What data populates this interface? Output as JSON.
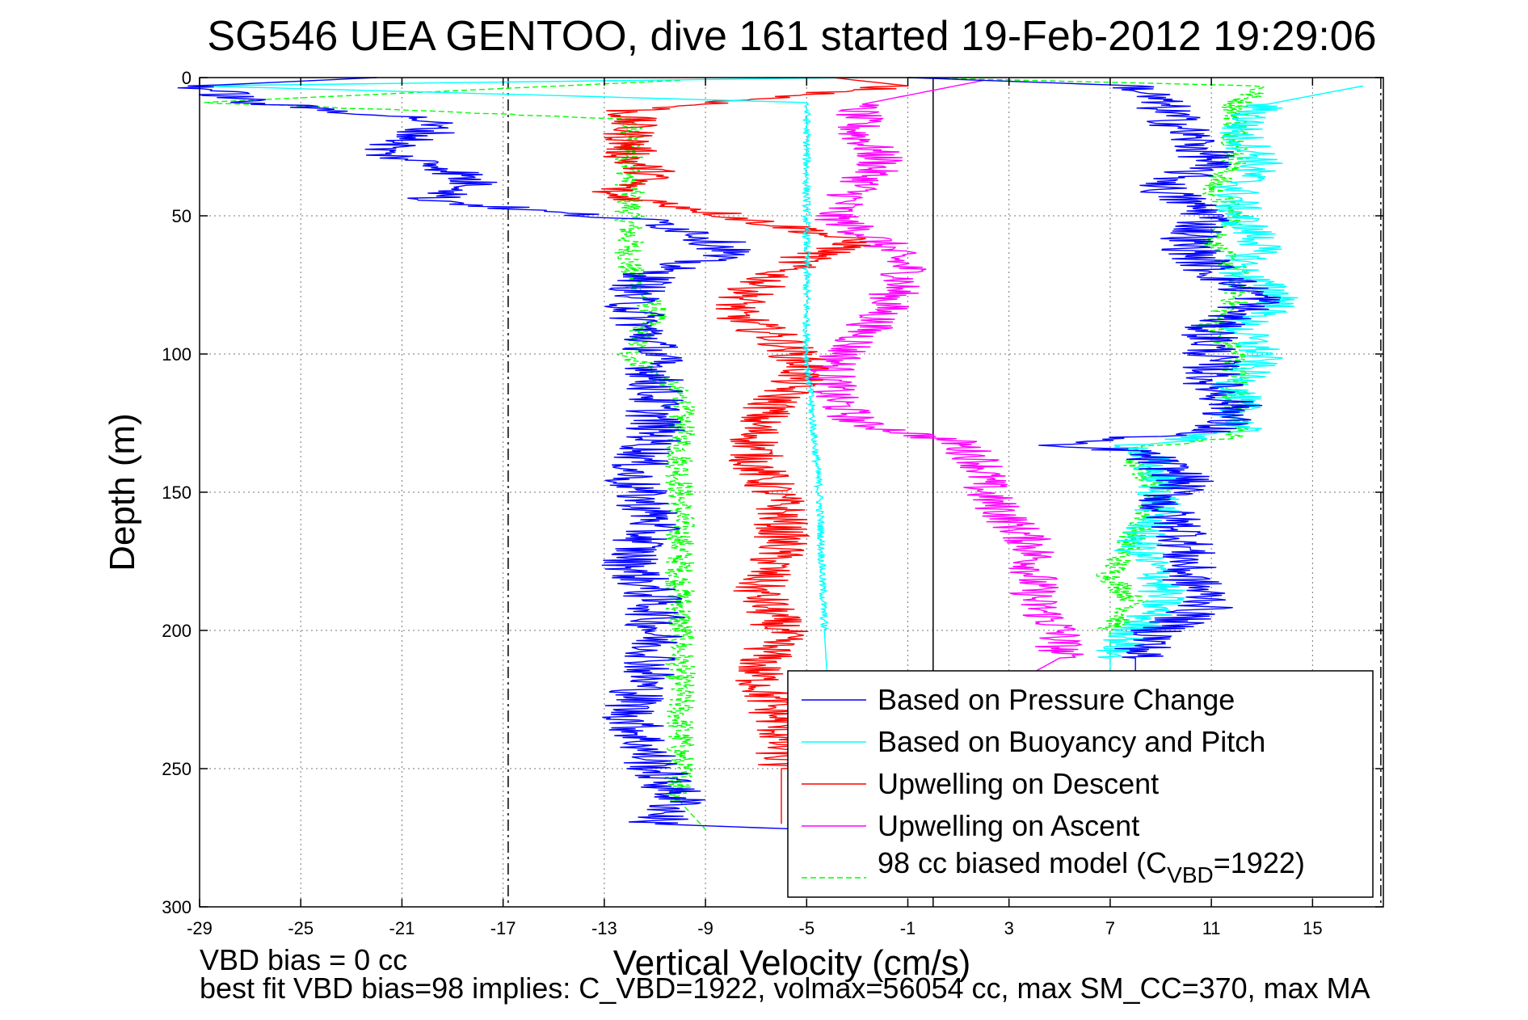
{
  "chart_data": {
    "type": "line",
    "title": "SG546 UEA GENTOO, dive 161 started 19-Feb-2012 19:29:06",
    "xlabel": "Vertical Velocity (cm/s)",
    "ylabel": "Depth (m)",
    "xlim": [
      -29,
      17.8
    ],
    "ylim": [
      0,
      300
    ],
    "y_reversed": true,
    "grid": true,
    "x_ticks": [
      -29,
      -25,
      -21,
      -17,
      -13,
      -9,
      -5,
      -1,
      3,
      7,
      11,
      15
    ],
    "x_tick_labels": [
      "-29",
      "-25",
      "-21",
      "-17",
      "-13",
      "-9",
      "-5",
      "-1",
      "3",
      "7",
      "11",
      "15"
    ],
    "y_ticks": [
      0,
      50,
      100,
      150,
      200,
      250,
      300
    ],
    "y_tick_labels": [
      "0",
      "50",
      "100",
      "150",
      "200",
      "250",
      "300"
    ],
    "legend_position": "bottom-right",
    "reference_lines": [
      {
        "x": 0,
        "style": "solid"
      },
      {
        "x": -16.8,
        "style": "dash-dot"
      },
      {
        "x": 17.7,
        "style": "dash-dot"
      }
    ],
    "series": [
      {
        "name": "Based on Pressure Change",
        "color": "#0000ff",
        "style": "solid",
        "descent": [
          [
            -22,
            0
          ],
          [
            -29,
            3
          ],
          [
            -27,
            9
          ],
          [
            -20,
            15
          ],
          [
            -20,
            20
          ],
          [
            -22,
            27
          ],
          [
            -19,
            33
          ],
          [
            -18,
            40
          ],
          [
            -20,
            44
          ],
          [
            -16,
            48
          ],
          [
            -11,
            52
          ],
          [
            -9,
            57
          ],
          [
            -8,
            63
          ],
          [
            -11,
            70
          ],
          [
            -12,
            80
          ],
          [
            -11,
            100
          ],
          [
            -11,
            115
          ],
          [
            -11,
            130
          ],
          [
            -12,
            145
          ],
          [
            -11,
            160
          ],
          [
            -12,
            175
          ],
          [
            -11,
            190
          ],
          [
            -11,
            210
          ],
          [
            -12,
            230
          ],
          [
            -11,
            250
          ],
          [
            -10,
            262
          ],
          [
            -11,
            270
          ],
          [
            -5,
            272
          ]
        ],
        "ascent": [
          [
            -1,
            0
          ],
          [
            8,
            3
          ],
          [
            9,
            10
          ],
          [
            10,
            20
          ],
          [
            11,
            30
          ],
          [
            9,
            40
          ],
          [
            11,
            50
          ],
          [
            10,
            60
          ],
          [
            11,
            70
          ],
          [
            13,
            80
          ],
          [
            11,
            90
          ],
          [
            11,
            100
          ],
          [
            11,
            110
          ],
          [
            12,
            120
          ],
          [
            11,
            128
          ],
          [
            4,
            133
          ],
          [
            8,
            135
          ],
          [
            10,
            145
          ],
          [
            9,
            155
          ],
          [
            10,
            165
          ],
          [
            10,
            180
          ],
          [
            11,
            190
          ],
          [
            9,
            200
          ],
          [
            8,
            210
          ],
          [
            8,
            215
          ]
        ],
        "amplitude": [
          1.2,
          1.2
        ]
      },
      {
        "name": "Based on Buoyancy and Pitch",
        "color": "#00ffff",
        "style": "solid",
        "descent": [
          [
            -3,
            0
          ],
          [
            -29,
            3
          ],
          [
            -5,
            9
          ],
          [
            -5,
            20
          ],
          [
            -5,
            40
          ],
          [
            -5,
            60
          ],
          [
            -5,
            80
          ],
          [
            -5,
            100
          ],
          [
            -4.8,
            120
          ],
          [
            -4.5,
            150
          ],
          [
            -4.3,
            200
          ],
          [
            -4.2,
            215
          ]
        ],
        "ascent": [
          [
            17,
            3
          ],
          [
            13,
            10
          ],
          [
            12,
            20
          ],
          [
            13,
            30
          ],
          [
            12,
            40
          ],
          [
            12,
            50
          ],
          [
            13,
            60
          ],
          [
            12,
            70
          ],
          [
            14,
            80
          ],
          [
            12,
            90
          ],
          [
            13,
            100
          ],
          [
            12,
            110
          ],
          [
            12,
            120
          ],
          [
            12,
            128
          ],
          [
            8,
            133
          ],
          [
            9,
            145
          ],
          [
            9,
            155
          ],
          [
            8,
            170
          ],
          [
            9,
            180
          ],
          [
            9,
            190
          ],
          [
            8,
            200
          ],
          [
            7,
            210
          ],
          [
            7,
            215
          ]
        ],
        "amplitude": [
          0.15,
          1.0
        ]
      },
      {
        "name": "Upwelling on Descent",
        "color": "#ff0000",
        "style": "solid",
        "descent": [
          [
            -4,
            0
          ],
          [
            -1,
            3
          ],
          [
            -12,
            12
          ],
          [
            -12,
            20
          ],
          [
            -12,
            30
          ],
          [
            -11,
            35
          ],
          [
            -13,
            42
          ],
          [
            -9,
            48
          ],
          [
            -7,
            52
          ],
          [
            -5,
            55
          ],
          [
            -3,
            60
          ],
          [
            -5,
            65
          ],
          [
            -6,
            70
          ],
          [
            -7,
            76
          ],
          [
            -8,
            85
          ],
          [
            -6,
            95
          ],
          [
            -5,
            105
          ],
          [
            -6,
            115
          ],
          [
            -7,
            125
          ],
          [
            -7,
            140
          ],
          [
            -6,
            155
          ],
          [
            -6,
            170
          ],
          [
            -7,
            185
          ],
          [
            -6,
            200
          ],
          [
            -7,
            215
          ],
          [
            -6,
            235
          ],
          [
            -6,
            250
          ],
          [
            -6,
            270
          ]
        ],
        "amplitude": [
          1.1
        ]
      },
      {
        "name": "Upwelling on Ascent",
        "color": "#ff00ff",
        "style": "solid",
        "ascent": [
          [
            2,
            1
          ],
          [
            -3,
            10
          ],
          [
            -3,
            20
          ],
          [
            -2,
            30
          ],
          [
            -3,
            40
          ],
          [
            -4,
            50
          ],
          [
            -2,
            60
          ],
          [
            -1,
            70
          ],
          [
            -2,
            85
          ],
          [
            -3,
            95
          ],
          [
            -4,
            105
          ],
          [
            -4,
            115
          ],
          [
            -3,
            125
          ],
          [
            1,
            132
          ],
          [
            2,
            140
          ],
          [
            2,
            150
          ],
          [
            3,
            160
          ],
          [
            4,
            170
          ],
          [
            4,
            180
          ],
          [
            4,
            190
          ],
          [
            5,
            200
          ],
          [
            5,
            210
          ],
          [
            4,
            215
          ]
        ],
        "amplitude": [
          1.0
        ]
      },
      {
        "name": "98 cc biased model (CVBD=1922)",
        "color": "#00ff00",
        "style": "dashed",
        "descent": [
          [
            -10,
            1
          ],
          [
            -29,
            9
          ],
          [
            -12,
            15
          ],
          [
            -12,
            25
          ],
          [
            -12,
            35
          ],
          [
            -12,
            45
          ],
          [
            -12,
            55
          ],
          [
            -12,
            70
          ],
          [
            -11,
            85
          ],
          [
            -12,
            100
          ],
          [
            -10,
            115
          ],
          [
            -10,
            130
          ],
          [
            -10,
            150
          ],
          [
            -10,
            170
          ],
          [
            -10,
            190
          ],
          [
            -10,
            210
          ],
          [
            -10,
            230
          ],
          [
            -10,
            250
          ],
          [
            -10,
            262
          ],
          [
            -9,
            272
          ]
        ],
        "ascent": [
          [
            -1,
            0
          ],
          [
            13,
            3
          ],
          [
            12,
            10
          ],
          [
            12,
            20
          ],
          [
            12,
            30
          ],
          [
            11,
            40
          ],
          [
            12,
            50
          ],
          [
            11,
            60
          ],
          [
            12,
            70
          ],
          [
            12,
            80
          ],
          [
            11,
            90
          ],
          [
            12,
            100
          ],
          [
            12,
            110
          ],
          [
            12,
            120
          ],
          [
            12,
            130
          ],
          [
            8,
            134
          ],
          [
            8,
            140
          ],
          [
            9,
            150
          ],
          [
            8,
            165
          ],
          [
            7,
            180
          ],
          [
            8,
            190
          ],
          [
            7,
            200
          ],
          [
            7,
            215
          ]
        ],
        "amplitude": [
          0.6,
          0.6
        ]
      }
    ],
    "legend_sub": {
      "prefix": "98 cc biased model (C",
      "sub": "VBD",
      "suffix": "=1922)"
    }
  },
  "notes": {
    "vbd_bias": "VBD bias = 0 cc",
    "best_fit": "best fit VBD bias=98 implies: C_VBD=1922, volmax=56054 cc, max SM_CC=370, max MA"
  }
}
